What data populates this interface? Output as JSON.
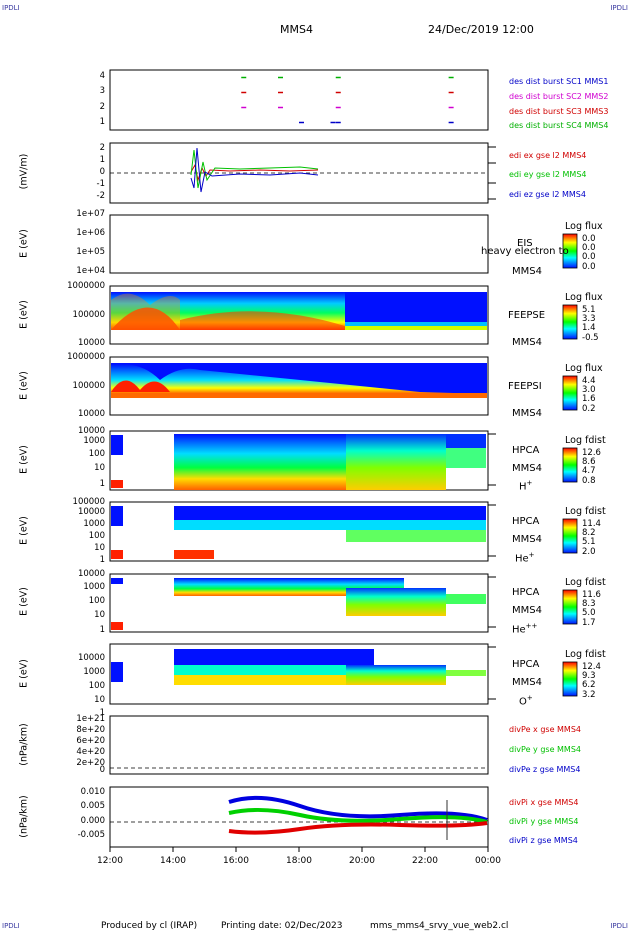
{
  "corner_marks": {
    "tl": "IPDLI",
    "tr": "IPDLI",
    "bl": "IPDLI",
    "br": "IPDLI"
  },
  "header": {
    "spacecraft": "MMS4",
    "datetime": "24/Dec/2019 12:00"
  },
  "footer": {
    "produced_by": "Produced by cl (IRAP)",
    "printing_date": "Printing date: 02/Dec/2023",
    "filename": "mms_mms4_srvy_vue_web2.cl"
  },
  "x_axis": {
    "ticks": [
      "12:00",
      "14:00",
      "16:00",
      "18:00",
      "20:00",
      "22:00",
      "00:00"
    ]
  },
  "colors": {
    "sc1": "#0000c8",
    "sc2": "#d000d0",
    "sc3": "#d00000",
    "sc4": "#00b000",
    "edi_x": "#d00000",
    "edi_y": "#00c000",
    "edi_z": "#0000c8"
  },
  "chart_data": [
    {
      "type": "scatter",
      "panel": "burst",
      "yticks": [
        "4",
        "3",
        "2",
        "1"
      ],
      "ylim": [
        0.5,
        4.5
      ],
      "legend": [
        "des dist burst SC1 MMS1",
        "des dist burst SC2 MMS2",
        "des dist burst SC3 MMS3",
        "des dist burst SC4 MMS4"
      ],
      "series": [
        {
          "name": "des dist burst SC1 MMS1",
          "y": 1,
          "x": [
            "18:00",
            "19:00",
            "19:10",
            "22:45"
          ]
        },
        {
          "name": "des dist burst SC2 MMS2",
          "y": 2,
          "x": [
            "16:10",
            "17:20",
            "19:10",
            "22:45"
          ]
        },
        {
          "name": "des dist burst SC3 MMS3",
          "y": 3,
          "x": [
            "16:10",
            "17:20",
            "19:10",
            "22:45"
          ]
        },
        {
          "name": "des dist burst SC4 MMS4",
          "y": 4,
          "x": [
            "16:10",
            "17:20",
            "19:10",
            "22:45"
          ]
        }
      ]
    },
    {
      "type": "line",
      "panel": "edi",
      "ylabel": "(mV/m)",
      "yticks": [
        "2",
        "1",
        "0",
        "-1",
        "-2"
      ],
      "ylim": [
        -2.5,
        2.5
      ],
      "legend": [
        "edi ex gse l2 MMS4",
        "edi ey gse l2 MMS4",
        "edi ez gse l2 MMS4"
      ],
      "x_range": [
        "14:35",
        "18:50"
      ]
    },
    {
      "type": "heatmap",
      "panel": "eis",
      "ylabel": "E (eV)",
      "yticks": [
        "1e+07",
        "1e+06",
        "1e+05",
        "1e+04"
      ],
      "side_labels": [
        "EIS",
        "MMS4"
      ],
      "overlay_text": "heavy electron to",
      "colorbar_label": "Log flux",
      "colorbar_values": [
        "0.0",
        "0.0",
        "0.0",
        "0.0"
      ]
    },
    {
      "type": "heatmap",
      "panel": "feepse",
      "ylabel": "E (eV)",
      "yticks": [
        "1000000",
        "100000",
        "10000"
      ],
      "side_labels": [
        "FEEPSE",
        "MMS4"
      ],
      "colorbar_label": "Log flux",
      "colorbar_values": [
        "5.1",
        "3.3",
        "1.4",
        "-0.5"
      ]
    },
    {
      "type": "heatmap",
      "panel": "feepsi",
      "ylabel": "E (eV)",
      "yticks": [
        "1000000",
        "100000",
        "10000"
      ],
      "side_labels": [
        "FEEPSI",
        "MMS4"
      ],
      "colorbar_label": "Log flux",
      "colorbar_values": [
        "4.4",
        "3.0",
        "1.6",
        "0.2"
      ]
    },
    {
      "type": "heatmap",
      "panel": "hpca_h",
      "ylabel": "E (eV)",
      "yticks": [
        "10000",
        "1000",
        "100",
        "10",
        "1"
      ],
      "side_labels": [
        "HPCA",
        "MMS4"
      ],
      "species": "H",
      "species_sup": "+",
      "colorbar_label": "Log fdist",
      "colorbar_values": [
        "12.6",
        "8.6",
        "4.7",
        "0.8"
      ]
    },
    {
      "type": "heatmap",
      "panel": "hpca_he",
      "ylabel": "E (eV)",
      "yticks": [
        "100000",
        "10000",
        "1000",
        "100",
        "10",
        "1"
      ],
      "side_labels": [
        "HPCA",
        "MMS4"
      ],
      "species": "He",
      "species_sup": "+",
      "colorbar_label": "Log fdist",
      "colorbar_values": [
        "11.4",
        "8.2",
        "5.1",
        "2.0"
      ]
    },
    {
      "type": "heatmap",
      "panel": "hpca_hepp",
      "ylabel": "E (eV)",
      "yticks": [
        "10000",
        "1000",
        "100",
        "10",
        "1"
      ],
      "side_labels": [
        "HPCA",
        "MMS4"
      ],
      "species": "He",
      "species_sup": "++",
      "colorbar_label": "Log fdist",
      "colorbar_values": [
        "11.6",
        "8.3",
        "5.0",
        "1.7"
      ]
    },
    {
      "type": "heatmap",
      "panel": "hpca_o",
      "ylabel": "E (eV)",
      "yticks": [
        "10000",
        "1000",
        "100",
        "10",
        "1"
      ],
      "side_labels": [
        "HPCA",
        "MMS4"
      ],
      "species": "O",
      "species_sup": "+",
      "colorbar_label": "Log fdist",
      "colorbar_values": [
        "12.4",
        "9.3",
        "6.2",
        "3.2"
      ]
    },
    {
      "type": "line",
      "panel": "divpe",
      "ylabel": "(nPa/km)",
      "yticks": [
        "1e+21",
        "8e+20",
        "6e+20",
        "4e+20",
        "2e+20",
        "0"
      ],
      "legend": [
        "divPe x gse MMS4",
        "divPe y gse MMS4",
        "divPe z gse MMS4"
      ]
    },
    {
      "type": "line",
      "panel": "divpi",
      "ylabel": "(nPa/km)",
      "yticks": [
        "0.010",
        "0.005",
        "0.000",
        "-0.005"
      ],
      "ylim": [
        -0.009,
        0.011
      ],
      "legend": [
        "divPi x gse MMS4",
        "divPi y gse MMS4",
        "divPi z gse MMS4"
      ],
      "series": [
        {
          "name": "divPi x gse MMS4",
          "x": [
            "15:50",
            "17:00",
            "19:00",
            "21:00",
            "23:00"
          ],
          "y": [
            -0.002,
            -0.0025,
            -0.001,
            0.0,
            0.0
          ]
        },
        {
          "name": "divPi y gse MMS4",
          "x": [
            "15:50",
            "17:00",
            "19:00",
            "21:00",
            "23:00"
          ],
          "y": [
            0.003,
            0.004,
            0.002,
            0.001,
            0.0005
          ]
        },
        {
          "name": "divPi z gse MMS4",
          "x": [
            "15:50",
            "17:00",
            "19:00",
            "21:00",
            "23:00"
          ],
          "y": [
            0.006,
            0.008,
            0.004,
            0.002,
            0.001
          ]
        }
      ]
    }
  ]
}
